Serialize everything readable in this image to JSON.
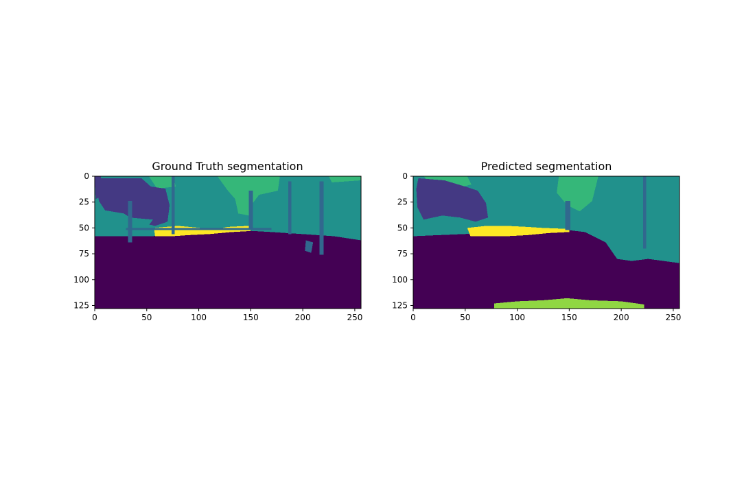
{
  "colors": {
    "c0": "#440154",
    "c1": "#443983",
    "c2": "#31688e",
    "c3": "#21918c",
    "c4": "#35b779",
    "c5": "#90d743",
    "c6": "#fde725"
  },
  "chart_data": [
    {
      "type": "heatmap",
      "title": "Ground Truth segmentation",
      "image_size": [
        256,
        128
      ],
      "xlim": [
        0,
        256
      ],
      "ylim": [
        128,
        0
      ],
      "xticks": [
        0,
        50,
        100,
        150,
        200,
        250
      ],
      "yticks": [
        0,
        25,
        50,
        75,
        100,
        125
      ],
      "regions": [
        {
          "cls": "c3",
          "pts": [
            [
              0,
              0
            ],
            [
              256,
              0
            ],
            [
              256,
              62
            ],
            [
              0,
              62
            ]
          ]
        },
        {
          "cls": "c4",
          "pts": [
            [
              52,
              0
            ],
            [
              75,
              0
            ],
            [
              78,
              10
            ],
            [
              60,
              12
            ]
          ]
        },
        {
          "cls": "c4",
          "pts": [
            [
              118,
              0
            ],
            [
              178,
              0
            ],
            [
              176,
              14
            ],
            [
              158,
              18
            ],
            [
              152,
              26
            ],
            [
              148,
              38
            ],
            [
              138,
              36
            ],
            [
              135,
              22
            ],
            [
              128,
              14
            ]
          ]
        },
        {
          "cls": "c4",
          "pts": [
            [
              225,
              0
            ],
            [
              256,
              0
            ],
            [
              256,
              4
            ],
            [
              228,
              6
            ]
          ]
        },
        {
          "cls": "c1",
          "pts": [
            [
              3,
              2
            ],
            [
              45,
              2
            ],
            [
              54,
              10
            ],
            [
              68,
              12
            ],
            [
              72,
              28
            ],
            [
              70,
              44
            ],
            [
              58,
              48
            ],
            [
              40,
              44
            ],
            [
              28,
              36
            ],
            [
              10,
              33
            ],
            [
              4,
              24
            ],
            [
              2,
              12
            ]
          ]
        },
        {
          "cls": "c1",
          "pts": [
            [
              0,
              0
            ],
            [
              6,
              0
            ],
            [
              5,
              20
            ],
            [
              1,
              22
            ]
          ]
        },
        {
          "cls": "c3",
          "pts": [
            [
              34,
              40
            ],
            [
              56,
              42
            ],
            [
              50,
              50
            ],
            [
              30,
              48
            ]
          ]
        },
        {
          "cls": "c0",
          "pts": [
            [
              0,
              58
            ],
            [
              55,
              58
            ],
            [
              95,
              54
            ],
            [
              135,
              52
            ],
            [
              170,
              54
            ],
            [
              200,
              56
            ],
            [
              230,
              58
            ],
            [
              256,
              62
            ],
            [
              256,
              128
            ],
            [
              0,
              128
            ]
          ]
        },
        {
          "cls": "c6",
          "pts": [
            [
              57,
              50
            ],
            [
              80,
              48
            ],
            [
              102,
              50
            ],
            [
              118,
              51
            ],
            [
              128,
              49
            ],
            [
              148,
              48
            ],
            [
              150,
              53
            ],
            [
              132,
              54
            ],
            [
              110,
              56
            ],
            [
              90,
              57
            ],
            [
              75,
              58
            ],
            [
              58,
              58
            ]
          ]
        },
        {
          "cls": "c2",
          "pts": [
            [
              74,
              0
            ],
            [
              77,
              0
            ],
            [
              77,
              56
            ],
            [
              74,
              56
            ]
          ]
        },
        {
          "cls": "c2",
          "pts": [
            [
              148,
              14
            ],
            [
              152,
              14
            ],
            [
              152,
              50
            ],
            [
              148,
              50
            ]
          ]
        },
        {
          "cls": "c2",
          "pts": [
            [
              216,
              5
            ],
            [
              220,
              5
            ],
            [
              220,
              76
            ],
            [
              216,
              76
            ]
          ]
        },
        {
          "cls": "c2",
          "pts": [
            [
              186,
              5
            ],
            [
              189,
              5
            ],
            [
              189,
              56
            ],
            [
              186,
              56
            ]
          ]
        },
        {
          "cls": "c2",
          "pts": [
            [
              203,
              62
            ],
            [
              210,
              64
            ],
            [
              208,
              74
            ],
            [
              202,
              72
            ]
          ]
        },
        {
          "cls": "c2",
          "pts": [
            [
              32,
              24
            ],
            [
              36,
              24
            ],
            [
              36,
              64
            ],
            [
              32,
              64
            ]
          ]
        },
        {
          "cls": "c2",
          "pts": [
            [
              30,
              50
            ],
            [
              170,
              50
            ],
            [
              170,
              52
            ],
            [
              30,
              52
            ]
          ]
        }
      ]
    },
    {
      "type": "heatmap",
      "title": "Predicted segmentation",
      "image_size": [
        256,
        128
      ],
      "xlim": [
        0,
        256
      ],
      "ylim": [
        128,
        0
      ],
      "xticks": [
        0,
        50,
        100,
        150,
        200,
        250
      ],
      "yticks": [
        0,
        25,
        50,
        75,
        100,
        125
      ],
      "regions": [
        {
          "cls": "c3",
          "pts": [
            [
              0,
              0
            ],
            [
              256,
              0
            ],
            [
              256,
              86
            ],
            [
              0,
              86
            ]
          ]
        },
        {
          "cls": "c4",
          "pts": [
            [
              10,
              0
            ],
            [
              52,
              0
            ],
            [
              56,
              8
            ],
            [
              40,
              12
            ],
            [
              20,
              10
            ]
          ]
        },
        {
          "cls": "c4",
          "pts": [
            [
              140,
              0
            ],
            [
              178,
              0
            ],
            [
              172,
              24
            ],
            [
              160,
              34
            ],
            [
              148,
              28
            ],
            [
              138,
              16
            ]
          ]
        },
        {
          "cls": "c1",
          "pts": [
            [
              5,
              2
            ],
            [
              30,
              4
            ],
            [
              50,
              10
            ],
            [
              62,
              14
            ],
            [
              70,
              26
            ],
            [
              72,
              40
            ],
            [
              60,
              44
            ],
            [
              45,
              40
            ],
            [
              28,
              38
            ],
            [
              10,
              42
            ],
            [
              4,
              30
            ],
            [
              3,
              12
            ]
          ]
        },
        {
          "cls": "c0",
          "pts": [
            [
              0,
              58
            ],
            [
              48,
              56
            ],
            [
              100,
              54
            ],
            [
              140,
              51
            ],
            [
              165,
              54
            ],
            [
              185,
              64
            ],
            [
              196,
              80
            ],
            [
              210,
              82
            ],
            [
              226,
              80
            ],
            [
              256,
              84
            ],
            [
              256,
              128
            ],
            [
              0,
              128
            ]
          ]
        },
        {
          "cls": "c6",
          "pts": [
            [
              52,
              50
            ],
            [
              70,
              48
            ],
            [
              90,
              48
            ],
            [
              110,
              49
            ],
            [
              125,
              50
            ],
            [
              150,
              51
            ],
            [
              150,
              54
            ],
            [
              130,
              55
            ],
            [
              110,
              57
            ],
            [
              90,
              58
            ],
            [
              70,
              58
            ],
            [
              55,
              58
            ]
          ]
        },
        {
          "cls": "c5",
          "pts": [
            [
              78,
              123
            ],
            [
              100,
              121
            ],
            [
              125,
              120
            ],
            [
              148,
              118
            ],
            [
              170,
              120
            ],
            [
              200,
              121
            ],
            [
              222,
              124
            ],
            [
              222,
              128
            ],
            [
              78,
              128
            ]
          ]
        },
        {
          "cls": "c2",
          "pts": [
            [
              221,
              0
            ],
            [
              224,
              0
            ],
            [
              224,
              70
            ],
            [
              221,
              70
            ]
          ]
        },
        {
          "cls": "c2",
          "pts": [
            [
              146,
              24
            ],
            [
              151,
              24
            ],
            [
              151,
              52
            ],
            [
              146,
              52
            ]
          ]
        }
      ]
    }
  ]
}
